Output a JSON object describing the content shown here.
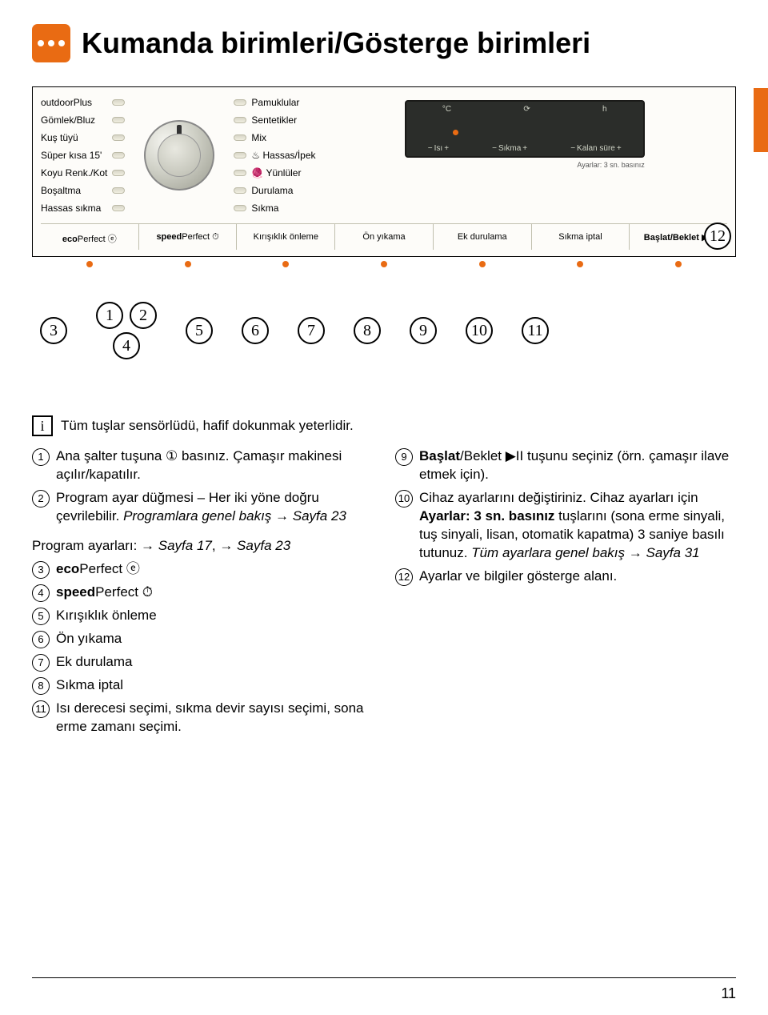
{
  "accent_color": "#e96b13",
  "page_number": "11",
  "title": "Kumanda birimleri/Gösterge birimleri",
  "programs_left": [
    "outdoorPlus",
    "Gömlek/Bluz",
    "Kuş tüyü",
    "Süper kısa 15'",
    "Koyu Renk./Kot",
    "Boşaltma",
    "Hassas sıkma"
  ],
  "programs_right": [
    "Pamuklular",
    "Sentetikler",
    "Mix",
    "Hassas/İpek",
    "Yünlüler",
    "Durulama",
    "Sıkma"
  ],
  "lcd": {
    "c": "°C",
    "h": "h",
    "isi": "Isı",
    "sikma": "Sıkma",
    "kalan": "Kalan süre"
  },
  "settings_hint": "Ayarlar: 3 sn. basınız",
  "buttons": [
    "ecoPerfect ⓔ",
    "speedPerfect ⏱",
    "Kırışıklık önleme",
    "Ön yıkama",
    "Ek durulama",
    "Sıkma iptal",
    "Başlat/Beklet ▶II"
  ],
  "callout_numbers": [
    "3",
    "4",
    "5",
    "6",
    "7",
    "8",
    "9",
    "10",
    "11"
  ],
  "callout_pair": [
    "1",
    "2"
  ],
  "callout_12": "12",
  "info_line": "Tüm tuşlar sensörlüdü, hafif dokunmak yeterlidir.",
  "left_entries": [
    {
      "n": "1",
      "html": "Ana şalter tuşuna ① basınız. Çamaşır makinesi açılır/kapatılır."
    },
    {
      "n": "2",
      "html": "Program ayar düğmesi – Her iki yöne doğru çevrilebilir. <em class='i'>Programlara genel bakış</em> → <em class='i'>Sayfa 23</em>"
    }
  ],
  "left_block_intro": "Program ayarları: → Sayfa 17, → Sayfa 23",
  "left_block": [
    {
      "n": "3",
      "t": "ecoPerfect ⓔ"
    },
    {
      "n": "4",
      "t": "speedPerfect ⏱"
    },
    {
      "n": "5",
      "t": "Kırışıklık önleme"
    },
    {
      "n": "6",
      "t": "Ön yıkama"
    },
    {
      "n": "7",
      "t": "Ek durulama"
    },
    {
      "n": "8",
      "t": "Sıkma iptal"
    },
    {
      "n": "11",
      "t": "Isı derecesi seçimi, sıkma devir sayısı seçimi, sona erme zamanı seçimi."
    }
  ],
  "right_entries": [
    {
      "n": "9",
      "html": "<span class='bold'>Başlat</span>/Beklet ▶II tuşunu seçiniz (örn. çamaşır ilave etmek için)."
    },
    {
      "n": "10",
      "html": "Cihaz ayarlarını değiştiriniz. Cihaz ayarları için <span class='bold'>Ayarlar: 3 sn. basınız</span> tuşlarını (sona erme sinyali, tuş sinyali, lisan, otomatik kapatma) 3 saniye basılı tutunuz. <em class='i'>Tüm ayarlara genel bakış</em> → <em class='i'>Sayfa 31</em>"
    },
    {
      "n": "12",
      "html": "Ayarlar ve bilgiler gösterge alanı."
    }
  ]
}
